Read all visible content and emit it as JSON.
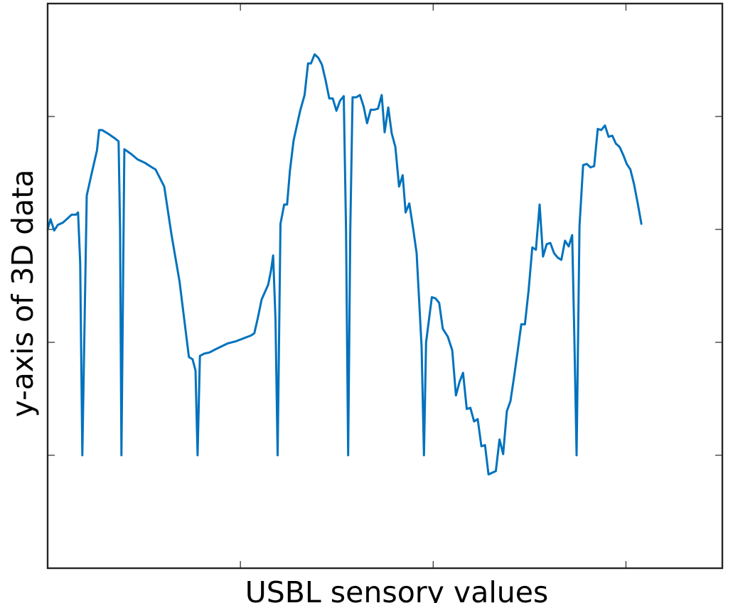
{
  "chart_data": {
    "type": "line",
    "title": "",
    "xlabel": "USBL sensory values",
    "ylabel": "y-axis of 3D data",
    "xlim": [
      0,
      350
    ],
    "ylim": [
      0,
      500
    ],
    "x_ticks": [
      100,
      200,
      300
    ],
    "y_ticks": [
      100,
      200,
      300,
      400
    ],
    "tick_labels_shown": false,
    "grid": false,
    "legend": "none",
    "box": true,
    "series": [
      {
        "color": "#0072BD",
        "points": [
          [
            0.0,
            300
          ],
          [
            1.5,
            309
          ],
          [
            3.4,
            299
          ],
          [
            5.3,
            304
          ],
          [
            7.9,
            306
          ],
          [
            10.5,
            310
          ],
          [
            12.4,
            313
          ],
          [
            14.7,
            313
          ],
          [
            15.8,
            315
          ],
          [
            16.9,
            270
          ],
          [
            18.0,
            100
          ],
          [
            20.3,
            330
          ],
          [
            22.9,
            350
          ],
          [
            25.6,
            370
          ],
          [
            26.7,
            388
          ],
          [
            28.2,
            388
          ],
          [
            31.2,
            385
          ],
          [
            34.6,
            381
          ],
          [
            36.8,
            378
          ],
          [
            37.6,
            300
          ],
          [
            38.3,
            100
          ],
          [
            39.8,
            371
          ],
          [
            43.2,
            367
          ],
          [
            46.6,
            362
          ],
          [
            50.4,
            359
          ],
          [
            54.1,
            355
          ],
          [
            56.0,
            353
          ],
          [
            60.5,
            338
          ],
          [
            64.3,
            295
          ],
          [
            68.4,
            254
          ],
          [
            73.3,
            187
          ],
          [
            75.2,
            185
          ],
          [
            76.7,
            175
          ],
          [
            77.8,
            100
          ],
          [
            79.0,
            188
          ],
          [
            81.2,
            190
          ],
          [
            83.9,
            191
          ],
          [
            87.3,
            194
          ],
          [
            93.3,
            199
          ],
          [
            97.8,
            201
          ],
          [
            102.3,
            204
          ],
          [
            105.4,
            206
          ],
          [
            107.2,
            208
          ],
          [
            109.1,
            222
          ],
          [
            111.0,
            238
          ],
          [
            114.4,
            251
          ],
          [
            115.9,
            264
          ],
          [
            117.0,
            277
          ],
          [
            118.2,
            220
          ],
          [
            119.3,
            100
          ],
          [
            120.8,
            305
          ],
          [
            122.7,
            322
          ],
          [
            124.2,
            322
          ],
          [
            125.7,
            352
          ],
          [
            127.6,
            379
          ],
          [
            131.0,
            405
          ],
          [
            133.3,
            419
          ],
          [
            135.1,
            447
          ],
          [
            136.6,
            447
          ],
          [
            138.5,
            455
          ],
          [
            140.4,
            452
          ],
          [
            142.3,
            446
          ],
          [
            144.2,
            432
          ],
          [
            146.1,
            416
          ],
          [
            147.9,
            416
          ],
          [
            149.8,
            405
          ],
          [
            151.7,
            414
          ],
          [
            153.6,
            418
          ],
          [
            154.8,
            300
          ],
          [
            155.9,
            100
          ],
          [
            157.0,
            300
          ],
          [
            158.2,
            417
          ],
          [
            160.1,
            417
          ],
          [
            162.0,
            419
          ],
          [
            163.9,
            409
          ],
          [
            165.7,
            394
          ],
          [
            167.6,
            406
          ],
          [
            169.5,
            406
          ],
          [
            171.4,
            407
          ],
          [
            173.3,
            419
          ],
          [
            174.8,
            386
          ],
          [
            176.7,
            408
          ],
          [
            178.5,
            385
          ],
          [
            180.4,
            373
          ],
          [
            182.3,
            338
          ],
          [
            184.2,
            348
          ],
          [
            185.7,
            315
          ],
          [
            187.6,
            323
          ],
          [
            189.5,
            302
          ],
          [
            191.4,
            279
          ],
          [
            194.0,
            196
          ],
          [
            195.2,
            100
          ],
          [
            196.3,
            200
          ],
          [
            199.3,
            240
          ],
          [
            201.2,
            239
          ],
          [
            203.1,
            235
          ],
          [
            205.0,
            212
          ],
          [
            207.6,
            205
          ],
          [
            209.9,
            193
          ],
          [
            211.8,
            153
          ],
          [
            213.7,
            165
          ],
          [
            215.5,
            173
          ],
          [
            217.4,
            141
          ],
          [
            219.3,
            142
          ],
          [
            221.2,
            130
          ],
          [
            223.1,
            132
          ],
          [
            225.0,
            108
          ],
          [
            226.9,
            109
          ],
          [
            228.7,
            83
          ],
          [
            232.5,
            86
          ],
          [
            234.4,
            114
          ],
          [
            236.3,
            101
          ],
          [
            238.2,
            139
          ],
          [
            240.1,
            148
          ],
          [
            242.0,
            170
          ],
          [
            243.9,
            193
          ],
          [
            245.7,
            216
          ],
          [
            247.6,
            216
          ],
          [
            249.5,
            246
          ],
          [
            251.4,
            284
          ],
          [
            253.3,
            282
          ],
          [
            255.2,
            322
          ],
          [
            257.0,
            276
          ],
          [
            258.9,
            287
          ],
          [
            260.8,
            288
          ],
          [
            262.7,
            279
          ],
          [
            264.6,
            275
          ],
          [
            266.5,
            273
          ],
          [
            268.4,
            290
          ],
          [
            270.3,
            285
          ],
          [
            272.1,
            295
          ],
          [
            273.3,
            200
          ],
          [
            274.4,
            100
          ],
          [
            275.9,
            303
          ],
          [
            277.8,
            357
          ],
          [
            279.7,
            358
          ],
          [
            281.6,
            355
          ],
          [
            283.5,
            356
          ],
          [
            285.4,
            389
          ],
          [
            287.2,
            388
          ],
          [
            289.1,
            392
          ],
          [
            291.0,
            382
          ],
          [
            292.9,
            383
          ],
          [
            294.8,
            376
          ],
          [
            296.7,
            373
          ],
          [
            298.6,
            366
          ],
          [
            300.4,
            358
          ],
          [
            302.3,
            353
          ],
          [
            304.2,
            340
          ],
          [
            306.1,
            323
          ],
          [
            308.0,
            305
          ]
        ]
      }
    ]
  }
}
